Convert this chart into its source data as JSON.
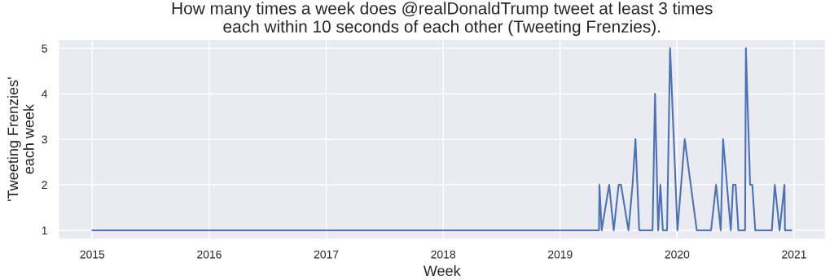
{
  "chart_data": {
    "type": "line",
    "title": "How many times a week does @realDonaldTrump tweet at least 3 times\neach within 10 seconds of each other (Tweeting Frenzies).",
    "xlabel": "Week",
    "ylabel": "'Tweeting Frenzies'\neach week",
    "x": [
      2015.0,
      2019.332,
      2019.336,
      2019.355,
      2019.419,
      2019.458,
      2019.5,
      2019.52,
      2019.584,
      2019.619,
      2019.644,
      2019.676,
      2019.79,
      2019.811,
      2019.838,
      2019.857,
      2019.878,
      2019.914,
      2019.94,
      2020.003,
      2020.065,
      2020.168,
      2020.29,
      2020.333,
      2020.373,
      2020.393,
      2020.459,
      2020.478,
      2020.5,
      2020.524,
      2020.581,
      2020.588,
      2020.624,
      2020.643,
      2020.668,
      2020.81,
      2020.835,
      2020.876,
      2020.918,
      2020.922,
      2020.977
    ],
    "series": [
      {
        "color": "#4c72b0",
        "values": [
          1,
          1,
          2,
          1,
          2,
          1,
          2,
          2,
          1,
          2,
          3,
          1,
          1,
          4,
          1,
          2,
          1,
          1,
          5,
          1,
          3,
          1,
          1,
          2,
          1,
          3,
          1,
          2,
          2,
          1,
          1,
          5,
          2,
          2,
          1,
          1,
          2,
          1,
          2,
          1,
          1
        ]
      }
    ],
    "xlim": [
      2014.71,
      2021.27
    ],
    "xticks": [
      2015,
      2016,
      2017,
      2018,
      2019,
      2020,
      2021
    ],
    "ylim": [
      0.8,
      5.2
    ],
    "yticks": [
      1,
      2,
      3,
      4,
      5
    ],
    "grid": true,
    "marker": "none",
    "line_style": "solid"
  }
}
